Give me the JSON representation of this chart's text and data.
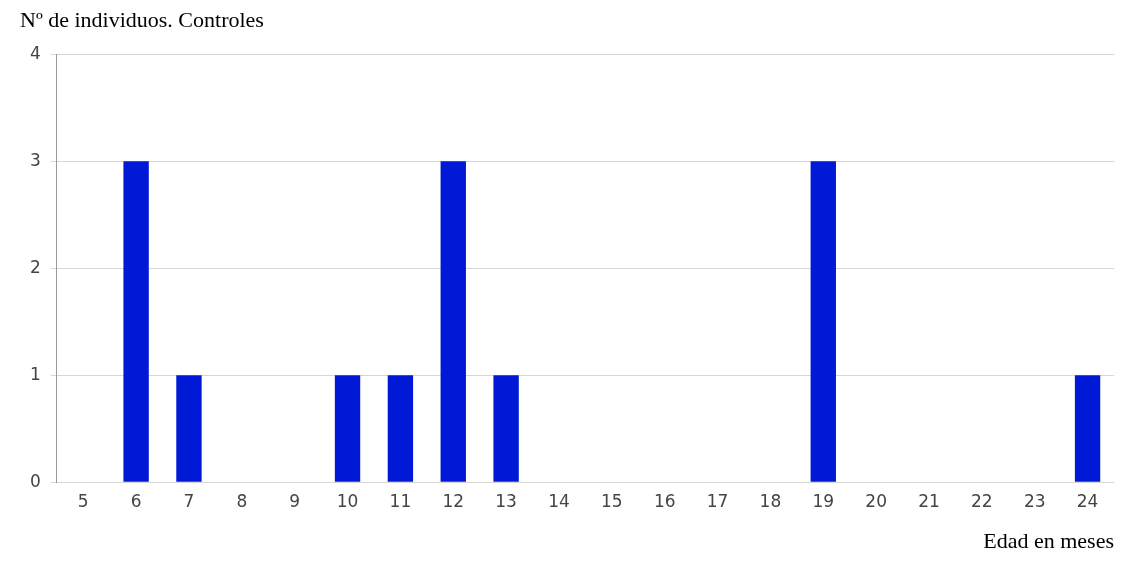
{
  "chart_data": {
    "type": "bar",
    "ylabel": "Nº de individuos. Controles",
    "xlabel": "Edad en meses",
    "categories": [
      "5",
      "6",
      "7",
      "8",
      "9",
      "10",
      "11",
      "12",
      "13",
      "14",
      "15",
      "16",
      "17",
      "18",
      "19",
      "20",
      "21",
      "22",
      "23",
      "24"
    ],
    "values": [
      0,
      3,
      1,
      0,
      0,
      1,
      1,
      3,
      1,
      0,
      0,
      0,
      0,
      0,
      3,
      0,
      0,
      0,
      0,
      1
    ],
    "color": "#0019d6",
    "ylim": [
      0,
      4
    ],
    "yticks": [
      0,
      1,
      2,
      3,
      4
    ],
    "grid": "y",
    "legend": false
  }
}
